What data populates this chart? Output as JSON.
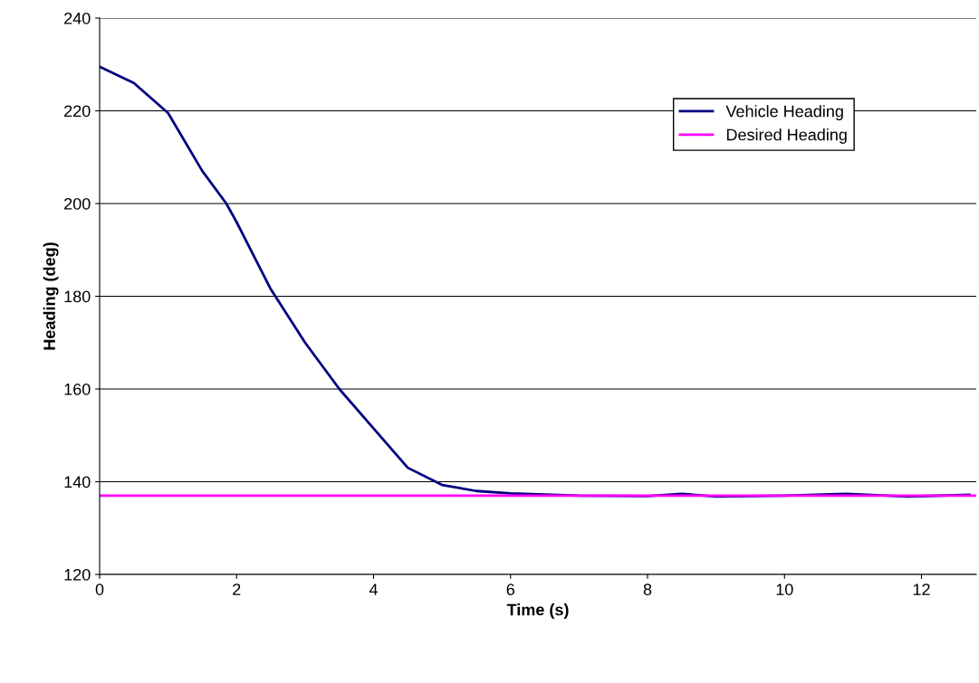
{
  "chart_data": {
    "type": "line",
    "xlabel": "Time (s)",
    "ylabel": "Heading (deg)",
    "xlim": [
      0,
      12.8
    ],
    "xticks": [
      0,
      2,
      4,
      6,
      8,
      10,
      12
    ],
    "ylim": [
      120,
      240
    ],
    "yticks": [
      120,
      140,
      160,
      180,
      200,
      220,
      240
    ],
    "grid": "y",
    "legend": "top right",
    "marker": "none",
    "line_style": "solid",
    "series": [
      {
        "name": "Vehicle Heading",
        "color": "#000080",
        "x": [
          0,
          0.5,
          1,
          1.5,
          1.85,
          2,
          2.5,
          3,
          3.5,
          4,
          4.5,
          5,
          5.5,
          6,
          7,
          8,
          8.5,
          9,
          10,
          10.9,
          11.8,
          12.7
        ],
        "values": [
          229.5,
          226,
          219.5,
          207,
          200,
          196,
          181.5,
          170,
          160,
          151.5,
          143,
          139.3,
          138,
          137.5,
          137,
          136.9,
          137.4,
          136.8,
          137,
          137.4,
          136.8,
          137.2
        ]
      },
      {
        "name": "Desired Heading",
        "color": "#ff00ff",
        "x": [
          0,
          12.8
        ],
        "values": [
          137,
          137
        ]
      }
    ]
  }
}
